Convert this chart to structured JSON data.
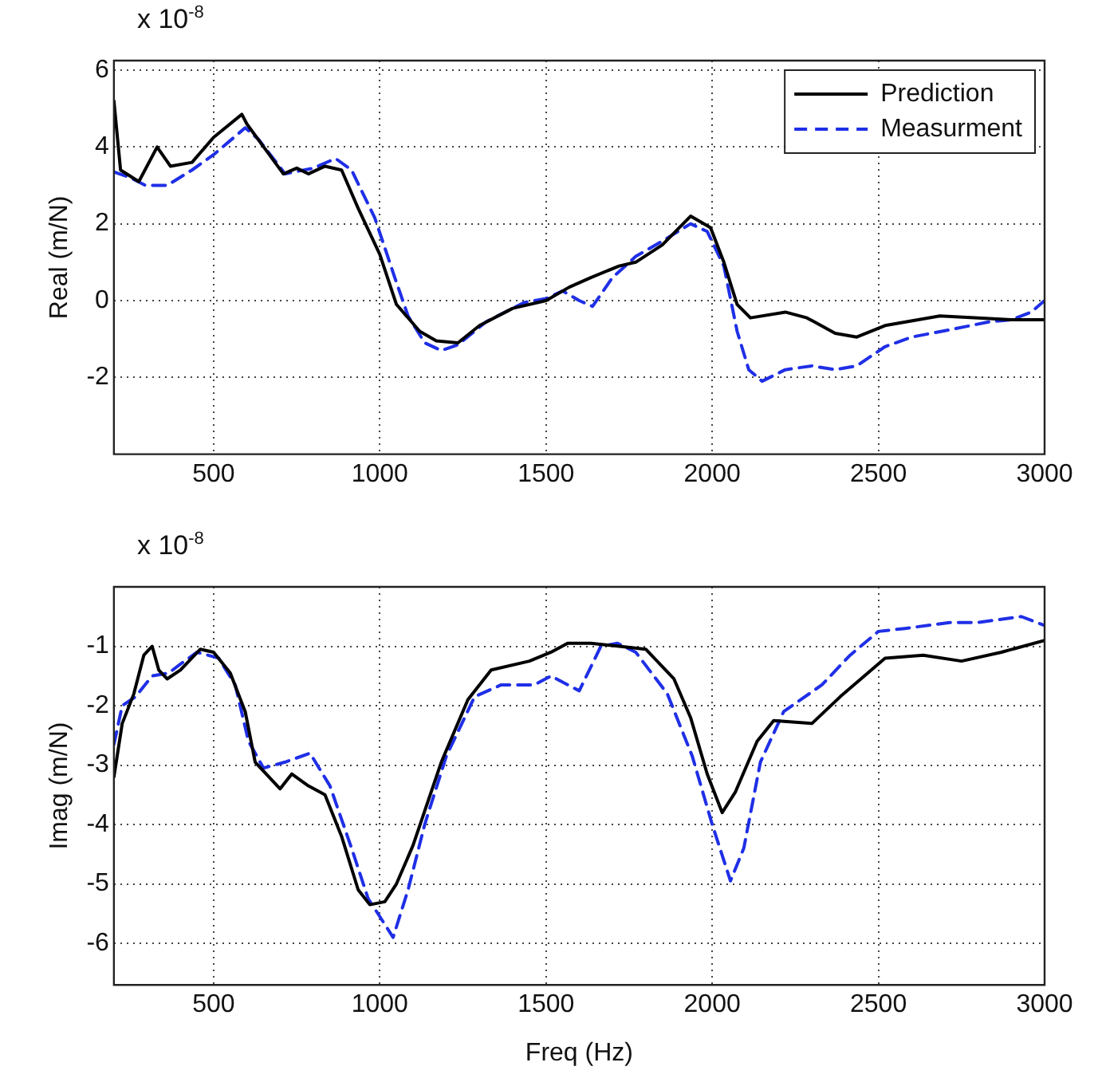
{
  "chart_data": [
    {
      "type": "line",
      "ylabel": "Real (m/N)",
      "annotations": [
        "x 10$^{-8}$"
      ],
      "xlim": [
        200,
        3000
      ],
      "xticks": [
        500,
        1000,
        1500,
        2000,
        2500,
        3000
      ],
      "ylim": [
        -4,
        6.25
      ],
      "yticks": [
        -2,
        0,
        2,
        4,
        6
      ],
      "grid": true,
      "legend": "top right",
      "series": [
        {
          "name": "Prediction",
          "color": "#000000",
          "line_style": "solid",
          "x": [
            200,
            220,
            275,
            330,
            370,
            435,
            500,
            585,
            600,
            710,
            750,
            785,
            835,
            885,
            935,
            1000,
            1050,
            1120,
            1170,
            1235,
            1300,
            1400,
            1500,
            1570,
            1635,
            1720,
            1770,
            1850,
            1935,
            1995,
            2035,
            2075,
            2115,
            2220,
            2285,
            2370,
            2435,
            2520,
            2685,
            2800,
            2900,
            3000
          ],
          "values": [
            5.2,
            3.4,
            3.1,
            4.0,
            3.5,
            3.6,
            4.25,
            4.85,
            4.6,
            3.3,
            3.45,
            3.3,
            3.5,
            3.4,
            2.4,
            1.2,
            -0.1,
            -0.8,
            -1.05,
            -1.1,
            -0.65,
            -0.2,
            0,
            0.35,
            0.6,
            0.9,
            1.0,
            1.45,
            2.2,
            1.9,
            1.0,
            -0.1,
            -0.45,
            -0.3,
            -0.45,
            -0.85,
            -0.95,
            -0.65,
            -0.4,
            -0.45,
            -0.5,
            -0.5
          ]
        },
        {
          "name": "Measurment",
          "color": "#1f2fe6",
          "line_style": "dashed",
          "x": [
            200,
            250,
            295,
            360,
            435,
            500,
            595,
            635,
            715,
            800,
            867,
            915,
            985,
            1045,
            1085,
            1135,
            1185,
            1235,
            1320,
            1435,
            1500,
            1550,
            1600,
            1640,
            1700,
            1770,
            1850,
            1935,
            1985,
            2035,
            2075,
            2110,
            2150,
            2220,
            2300,
            2370,
            2435,
            2520,
            2600,
            2720,
            2835,
            2900,
            2960,
            3000
          ],
          "values": [
            3.35,
            3.2,
            3.0,
            3.0,
            3.4,
            3.8,
            4.5,
            4.2,
            3.3,
            3.45,
            3.7,
            3.4,
            2.15,
            0.6,
            -0.4,
            -1.1,
            -1.3,
            -1.15,
            -0.55,
            -0.05,
            0.05,
            0.25,
            0,
            -0.15,
            0.6,
            1.15,
            1.55,
            2.0,
            1.8,
            0.9,
            -0.8,
            -1.8,
            -2.1,
            -1.8,
            -1.7,
            -1.8,
            -1.7,
            -1.2,
            -0.95,
            -0.75,
            -0.55,
            -0.5,
            -0.3,
            0
          ]
        }
      ]
    },
    {
      "type": "line",
      "xlabel": "Freq (Hz)",
      "ylabel": "Imag (m/N)",
      "annotations": [
        "x 10$^{-8}$"
      ],
      "xlim": [
        200,
        3000
      ],
      "xticks": [
        500,
        1000,
        1500,
        2000,
        2500,
        3000
      ],
      "ylim": [
        -6.7,
        0
      ],
      "yticks": [
        -6,
        -5,
        -4,
        -3,
        -2,
        -1
      ],
      "grid": true,
      "series": [
        {
          "color": "#000000",
          "line_style": "solid",
          "x": [
            200,
            225,
            260,
            290,
            315,
            335,
            360,
            400,
            460,
            500,
            550,
            595,
            625,
            700,
            735,
            785,
            835,
            885,
            935,
            970,
            1015,
            1050,
            1100,
            1185,
            1265,
            1335,
            1450,
            1515,
            1565,
            1635,
            1720,
            1800,
            1885,
            1935,
            1985,
            2030,
            2070,
            2135,
            2185,
            2300,
            2385,
            2520,
            2635,
            2750,
            2870,
            3000
          ],
          "values": [
            -3.2,
            -2.3,
            -1.8,
            -1.15,
            -1.0,
            -1.4,
            -1.55,
            -1.4,
            -1.05,
            -1.1,
            -1.45,
            -2.1,
            -2.95,
            -3.4,
            -3.15,
            -3.35,
            -3.5,
            -4.2,
            -5.1,
            -5.35,
            -5.3,
            -5.0,
            -4.35,
            -2.95,
            -1.9,
            -1.4,
            -1.25,
            -1.1,
            -0.95,
            -0.95,
            -1.0,
            -1.05,
            -1.55,
            -2.2,
            -3.15,
            -3.8,
            -3.45,
            -2.6,
            -2.25,
            -2.3,
            -1.85,
            -1.2,
            -1.15,
            -1.25,
            -1.1,
            -0.9
          ]
        },
        {
          "color": "#1f2fe6",
          "line_style": "dashed",
          "x": [
            200,
            225,
            265,
            315,
            365,
            400,
            450,
            515,
            565,
            605,
            650,
            715,
            790,
            850,
            915,
            965,
            1000,
            1040,
            1085,
            1135,
            1200,
            1285,
            1365,
            1465,
            1515,
            1600,
            1665,
            1715,
            1770,
            1865,
            1940,
            2000,
            2055,
            2095,
            2145,
            2215,
            2330,
            2415,
            2500,
            2580,
            2715,
            2800,
            2930,
            3000
          ],
          "values": [
            -2.65,
            -2.0,
            -1.85,
            -1.5,
            -1.45,
            -1.3,
            -1.1,
            -1.2,
            -1.65,
            -2.6,
            -3.05,
            -2.95,
            -2.8,
            -3.35,
            -4.4,
            -5.25,
            -5.55,
            -5.9,
            -5.1,
            -4.0,
            -2.85,
            -1.85,
            -1.65,
            -1.65,
            -1.5,
            -1.75,
            -1.0,
            -0.95,
            -1.1,
            -1.8,
            -2.85,
            -4.0,
            -4.95,
            -4.4,
            -2.95,
            -2.1,
            -1.65,
            -1.15,
            -0.75,
            -0.7,
            -0.6,
            -0.6,
            -0.5,
            -0.65
          ]
        }
      ]
    }
  ]
}
